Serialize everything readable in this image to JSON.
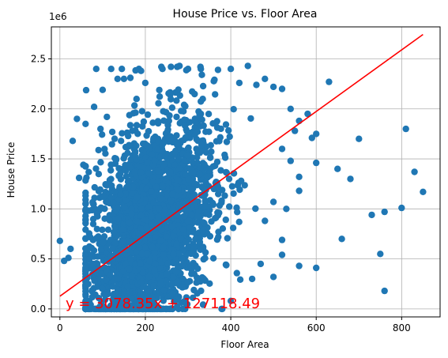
{
  "chart_data": {
    "type": "scatter",
    "title": "House Price vs. Floor Area",
    "xlabel": "Floor Area",
    "ylabel": "House Price",
    "y_offset_label": "1e6",
    "xlim": [
      -20,
      890
    ],
    "ylim": [
      -80000,
      2820000
    ],
    "xticks": [
      0,
      200,
      400,
      600,
      800
    ],
    "xtick_labels": [
      "0",
      "200",
      "400",
      "600",
      "800"
    ],
    "yticks": [
      0,
      500000,
      1000000,
      1500000,
      2000000,
      2500000
    ],
    "ytick_labels": [
      "0.0",
      "0.5",
      "1.0",
      "1.5",
      "2.0",
      "2.5"
    ],
    "grid": true,
    "scatter_color": "#1f77b4",
    "line_color": "#ff0000",
    "regression": {
      "slope": 3078.35,
      "intercept": 127118.49,
      "x_range": [
        0,
        850
      ],
      "equation_label": "y = 3078.35x + 127118.49"
    },
    "series": [
      {
        "values": [
          [
            0,
            680000
          ],
          [
            10,
            480000
          ],
          [
            20,
            510000
          ],
          [
            25,
            600000
          ],
          [
            30,
            1680000
          ],
          [
            40,
            1900000
          ],
          [
            45,
            1310000
          ],
          [
            55,
            1440000
          ],
          [
            60,
            1850000
          ],
          [
            85,
            2400000
          ],
          [
            80,
            2020000
          ],
          [
            95,
            1800000
          ],
          [
            100,
            2190000
          ],
          [
            110,
            1920000
          ],
          [
            120,
            2400000
          ],
          [
            135,
            2300000
          ],
          [
            145,
            2400000
          ],
          [
            150,
            2300000
          ],
          [
            165,
            2310000
          ],
          [
            185,
            2400000
          ],
          [
            190,
            2380000
          ],
          [
            200,
            2260000
          ],
          [
            240,
            2400000
          ],
          [
            260,
            2420000
          ],
          [
            280,
            2430000
          ],
          [
            300,
            2400000
          ],
          [
            330,
            2400000
          ],
          [
            370,
            2390000
          ],
          [
            400,
            2400000
          ],
          [
            440,
            2430000
          ],
          [
            480,
            2300000
          ],
          [
            420,
            2260000
          ],
          [
            460,
            2240000
          ],
          [
            500,
            2220000
          ],
          [
            520,
            2200000
          ],
          [
            630,
            2270000
          ],
          [
            650,
            1400000
          ],
          [
            600,
            1750000
          ],
          [
            600,
            1460000
          ],
          [
            600,
            410000
          ],
          [
            660,
            700000
          ],
          [
            680,
            1300000
          ],
          [
            700,
            1700000
          ],
          [
            730,
            940000
          ],
          [
            750,
            550000
          ],
          [
            760,
            970000
          ],
          [
            760,
            180000
          ],
          [
            800,
            1010000
          ],
          [
            810,
            1800000
          ],
          [
            830,
            1370000
          ],
          [
            850,
            1170000
          ],
          [
            560,
            1180000
          ],
          [
            560,
            1880000
          ],
          [
            580,
            1950000
          ],
          [
            590,
            1710000
          ],
          [
            540,
            1480000
          ],
          [
            530,
            1000000
          ],
          [
            520,
            690000
          ],
          [
            560,
            430000
          ],
          [
            500,
            320000
          ],
          [
            450,
            300000
          ],
          [
            400,
            80000
          ],
          [
            540,
            2000000
          ],
          [
            550,
            1780000
          ],
          [
            560,
            1320000
          ],
          [
            500,
            1070000
          ],
          [
            480,
            880000
          ],
          [
            520,
            540000
          ],
          [
            470,
            450000
          ],
          [
            520,
            1600000
          ]
        ]
      }
    ]
  }
}
